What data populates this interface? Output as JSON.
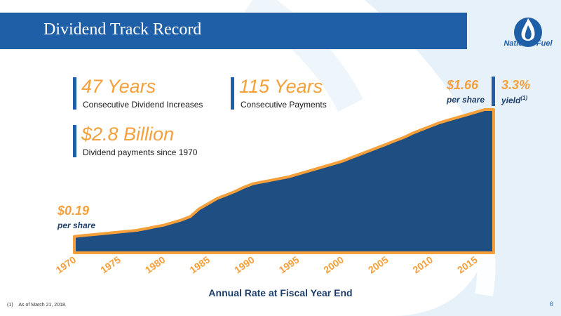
{
  "slide": {
    "title": "Dividend Track Record",
    "logo_text": "National Fuel",
    "page_number": "6",
    "footnote_marker": "(1)",
    "footnote_text": "As of March 21, 2018."
  },
  "stats": [
    {
      "value": "47 Years",
      "caption": "Consecutive Dividend Increases"
    },
    {
      "value": "115 Years",
      "caption": "Consecutive Payments"
    },
    {
      "value": "$2.8 Billion",
      "caption": "Dividend payments since 1970"
    }
  ],
  "callouts": {
    "start": {
      "value": "$0.19",
      "sub": "per share"
    },
    "end": {
      "value": "$1.66",
      "sub": "per share"
    },
    "yield": {
      "value": "3.3%",
      "sub": "yield",
      "sup": "(1)"
    }
  },
  "colors": {
    "brand_blue": "#1e5fa8",
    "area_fill": "#1f4f82",
    "accent_orange": "#f5a03a"
  },
  "chart_data": {
    "type": "area",
    "xlabel": "Annual Rate at Fiscal Year End",
    "ylabel": "",
    "x_ticks": [
      "1970",
      "1975",
      "1980",
      "1985",
      "1990",
      "1995",
      "2000",
      "2005",
      "2010",
      "2015"
    ],
    "xlim": [
      1970,
      2017
    ],
    "ylim": [
      0,
      1.8
    ],
    "grid": false,
    "series": [
      {
        "x": [
          1970,
          1971,
          1972,
          1973,
          1974,
          1975,
          1976,
          1977,
          1978,
          1979,
          1980,
          1981,
          1982,
          1983,
          1984,
          1985,
          1986,
          1987,
          1988,
          1989,
          1990,
          1991,
          1992,
          1993,
          1994,
          1995,
          1996,
          1997,
          1998,
          1999,
          2000,
          2001,
          2002,
          2003,
          2004,
          2005,
          2006,
          2007,
          2008,
          2009,
          2010,
          2011,
          2012,
          2013,
          2014,
          2015,
          2016,
          2017
        ],
        "values": [
          0.19,
          0.2,
          0.21,
          0.22,
          0.23,
          0.24,
          0.25,
          0.26,
          0.28,
          0.3,
          0.32,
          0.35,
          0.38,
          0.42,
          0.51,
          0.57,
          0.63,
          0.67,
          0.71,
          0.76,
          0.8,
          0.82,
          0.84,
          0.86,
          0.88,
          0.91,
          0.94,
          0.97,
          1.0,
          1.03,
          1.06,
          1.1,
          1.14,
          1.18,
          1.22,
          1.26,
          1.3,
          1.34,
          1.39,
          1.43,
          1.47,
          1.51,
          1.54,
          1.57,
          1.6,
          1.63,
          1.66,
          1.66
        ]
      }
    ]
  }
}
